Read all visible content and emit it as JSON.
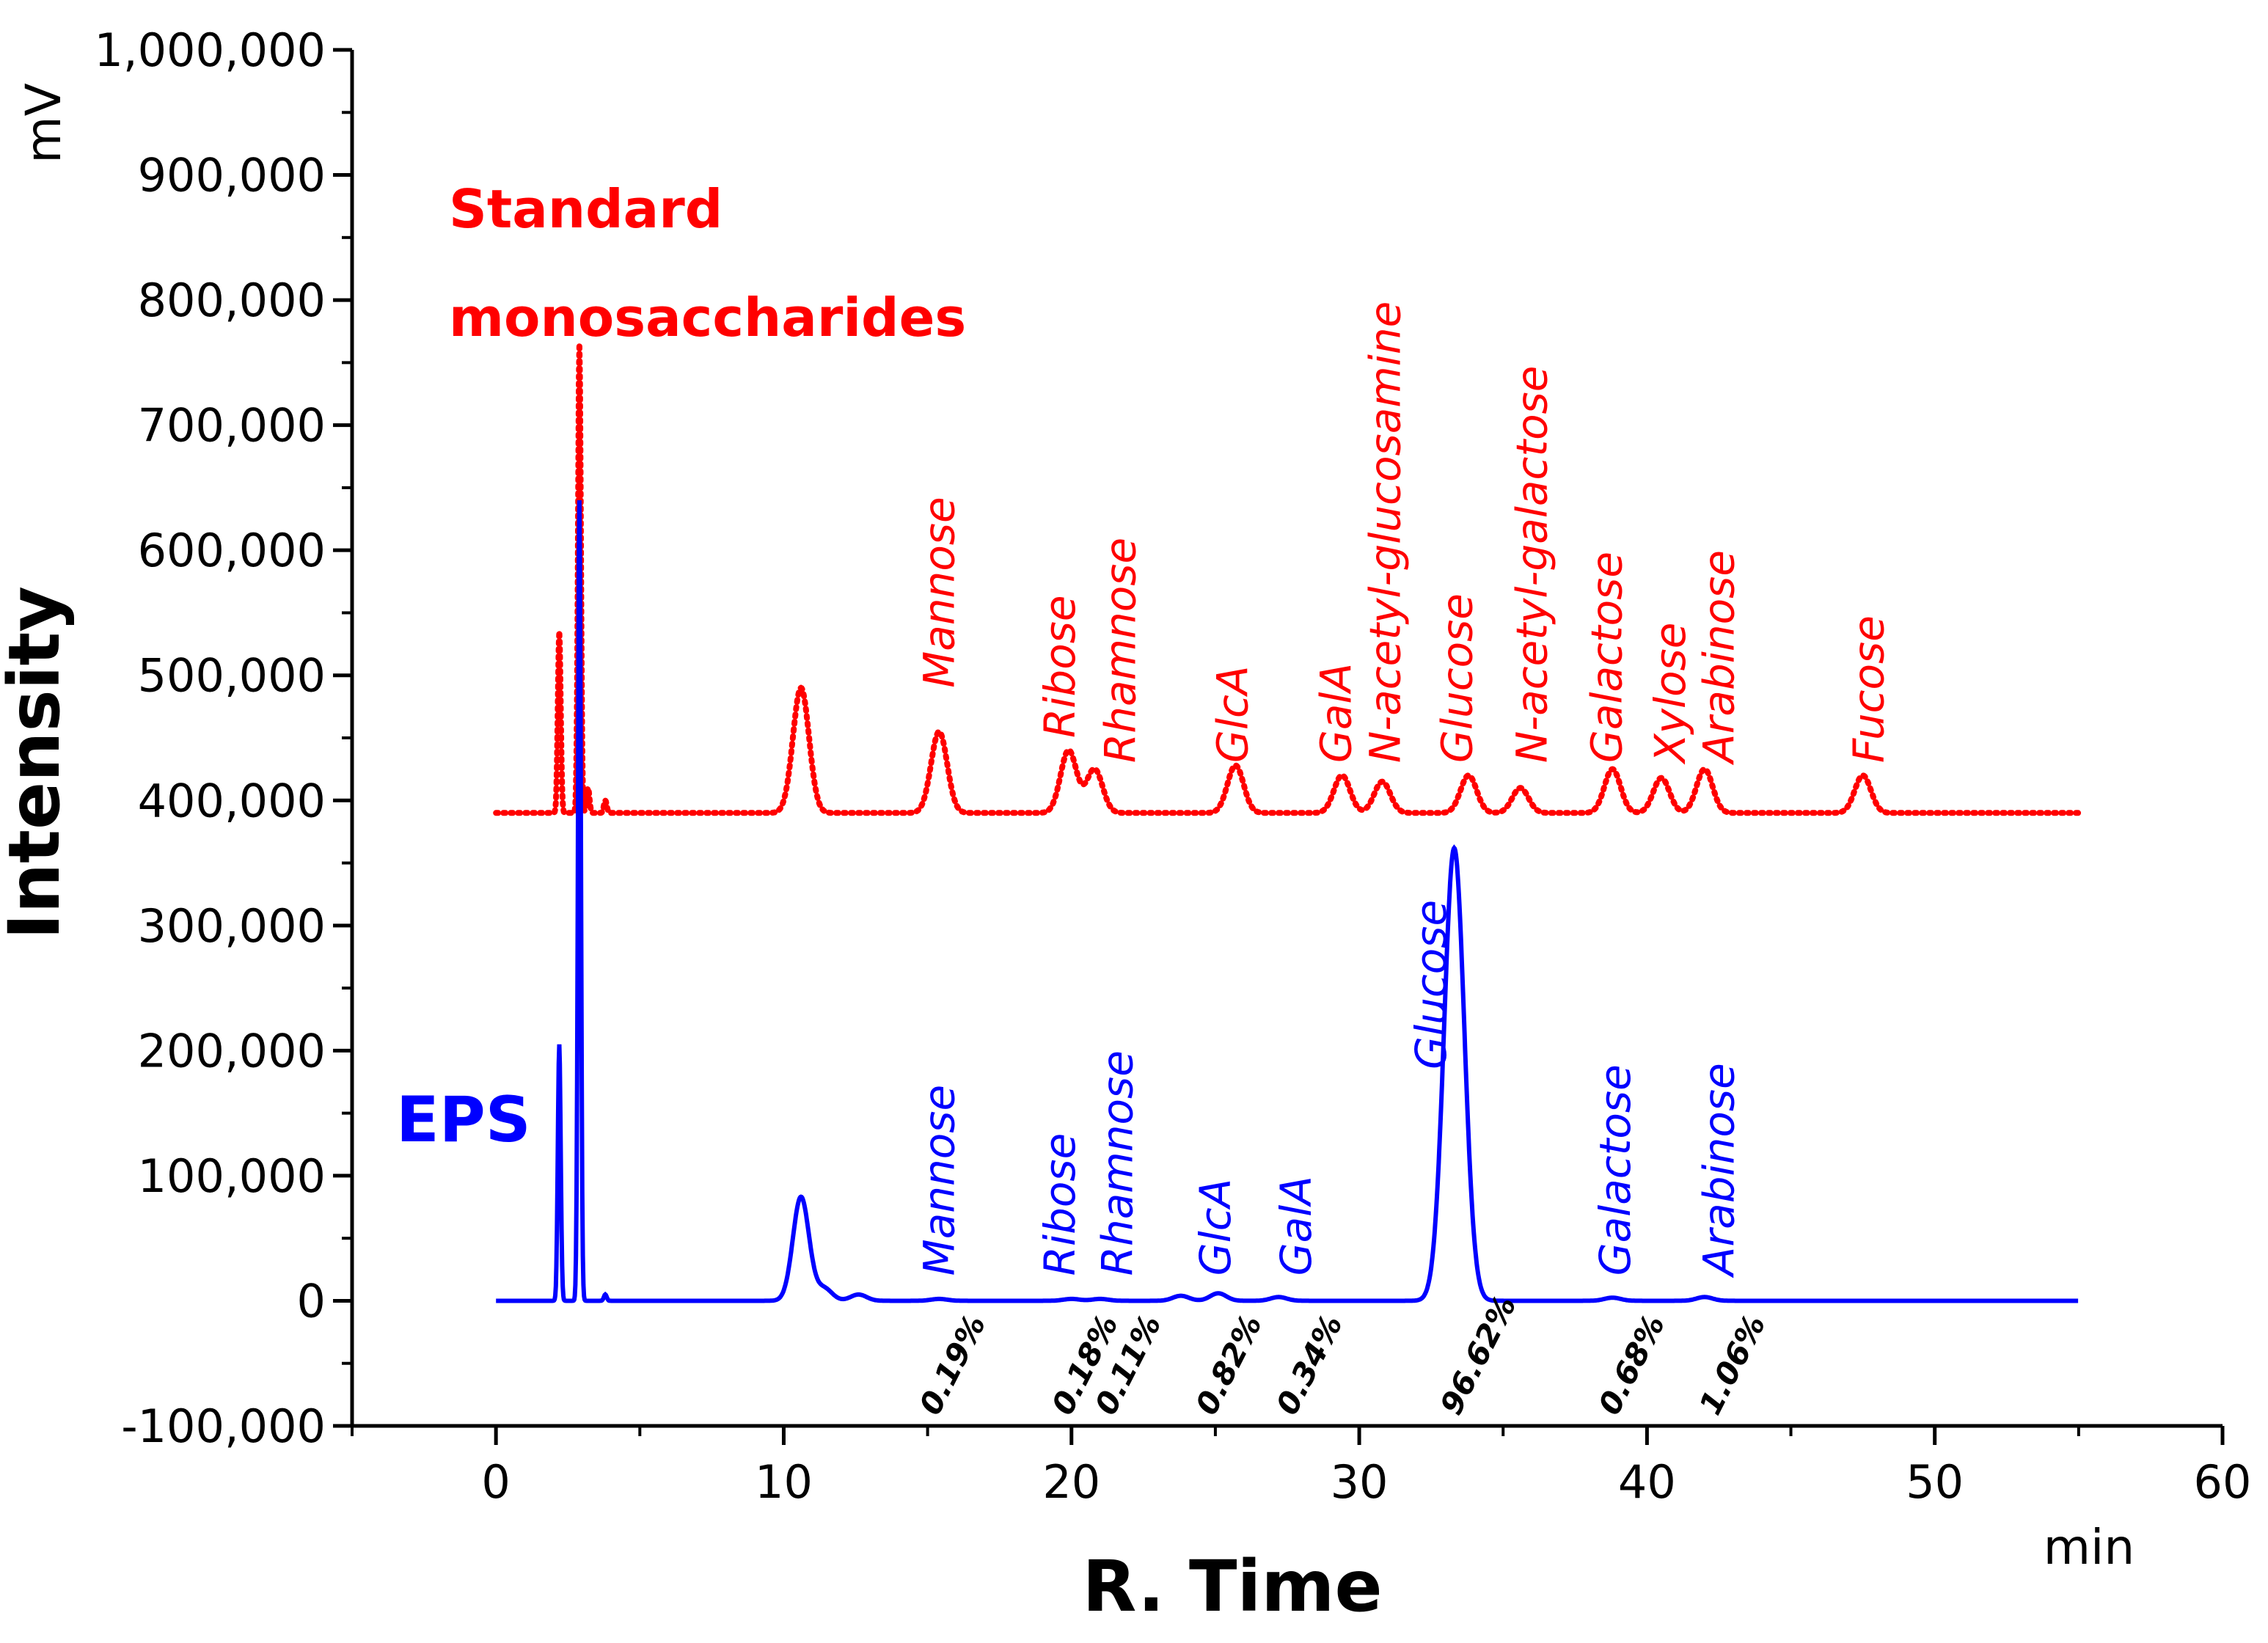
{
  "chart_data": {
    "type": "line",
    "ylabel": "Intensity",
    "yunit": "mV",
    "xlabel": "R. Time",
    "xunit": "min",
    "xlim": [
      -5,
      60
    ],
    "ylim": [
      -100000,
      1000000
    ],
    "xticks": [
      0,
      10,
      20,
      30,
      40,
      50,
      60
    ],
    "xtick_labels": [
      "0",
      "10",
      "20",
      "30",
      "40",
      "50",
      "60"
    ],
    "yticks": [
      -100000,
      0,
      100000,
      200000,
      300000,
      400000,
      500000,
      600000,
      700000,
      800000,
      900000,
      1000000
    ],
    "ytick_labels": [
      "-100,000",
      "0",
      "100,000",
      "200,000",
      "300,000",
      "400,000",
      "500,000",
      "600,000",
      "700,000",
      "800,000",
      "900,000",
      "1,000,000"
    ],
    "series": [
      {
        "name": "Standard monosaccharides",
        "name_lines": [
          "Standard",
          "monosaccharides"
        ],
        "color": "#ff0000",
        "style": "dotted",
        "x_range": [
          0,
          55
        ],
        "baseline": 390000,
        "peaks": [
          {
            "x": 2.2,
            "y": 535000
          },
          {
            "x": 2.9,
            "y": 765000
          },
          {
            "x": 3.2,
            "y": 410000
          },
          {
            "x": 3.8,
            "y": 400000
          },
          {
            "x": 10.6,
            "y": 490000
          },
          {
            "x": 15.4,
            "y": 455000
          },
          {
            "x": 19.9,
            "y": 440000
          },
          {
            "x": 20.8,
            "y": 425000
          },
          {
            "x": 25.7,
            "y": 428000
          },
          {
            "x": 29.4,
            "y": 420000
          },
          {
            "x": 30.8,
            "y": 415000
          },
          {
            "x": 33.8,
            "y": 420000
          },
          {
            "x": 35.6,
            "y": 410000
          },
          {
            "x": 38.8,
            "y": 425000
          },
          {
            "x": 40.5,
            "y": 418000
          },
          {
            "x": 42.0,
            "y": 425000
          },
          {
            "x": 47.5,
            "y": 420000
          }
        ],
        "peak_labels": [
          {
            "text": "Mannose",
            "x": 15.4,
            "y": 490000
          },
          {
            "text": "Ribose",
            "x": 19.6,
            "y": 450000
          },
          {
            "text": "Rhamnose",
            "x": 21.7,
            "y": 430000
          },
          {
            "text": "GlcA",
            "x": 25.6,
            "y": 430000
          },
          {
            "text": "GalA",
            "x": 29.2,
            "y": 430000
          },
          {
            "text": "N-acetyl-glucosamine",
            "x": 30.9,
            "y": 430000
          },
          {
            "text": "Glucose",
            "x": 33.4,
            "y": 430000
          },
          {
            "text": "N-acetyl-galactose",
            "x": 36.0,
            "y": 430000
          },
          {
            "text": "Galactose",
            "x": 38.6,
            "y": 430000
          },
          {
            "text": "Xylose",
            "x": 40.8,
            "y": 430000
          },
          {
            "text": "Arabinose",
            "x": 42.5,
            "y": 430000
          },
          {
            "text": "Fucose",
            "x": 47.7,
            "y": 430000
          }
        ]
      },
      {
        "name": "EPS",
        "color": "#0000ff",
        "style": "solid",
        "x_range": [
          0,
          55
        ],
        "baseline": 0,
        "peaks": [
          {
            "x": 2.2,
            "y": 205000
          },
          {
            "x": 2.9,
            "y": 640000
          },
          {
            "x": 3.8,
            "y": 5000
          },
          {
            "x": 10.6,
            "y": 83000
          },
          {
            "x": 11.4,
            "y": 10000
          },
          {
            "x": 12.6,
            "y": 5000
          },
          {
            "x": 15.4,
            "y": 1500
          },
          {
            "x": 20.0,
            "y": 1500
          },
          {
            "x": 21.0,
            "y": 1500
          },
          {
            "x": 23.8,
            "y": 4000
          },
          {
            "x": 25.1,
            "y": 6000
          },
          {
            "x": 27.2,
            "y": 3000
          },
          {
            "x": 33.3,
            "y": 362000
          },
          {
            "x": 38.8,
            "y": 2500
          },
          {
            "x": 42.0,
            "y": 3000
          }
        ],
        "peak_labels": [
          {
            "text": "Mannose",
            "x": 15.4,
            "y": 20000
          },
          {
            "text": "Ribose",
            "x": 19.6,
            "y": 20000
          },
          {
            "text": "Rhamnose",
            "x": 21.6,
            "y": 20000
          },
          {
            "text": "GlcA",
            "x": 25.0,
            "y": 20000
          },
          {
            "text": "GalA",
            "x": 27.8,
            "y": 20000
          },
          {
            "text": "Glucose",
            "x": 32.5,
            "y": 185000
          },
          {
            "text": "Galactose",
            "x": 38.9,
            "y": 20000
          },
          {
            "text": "Arabinose",
            "x": 42.5,
            "y": 20000
          }
        ],
        "percentages": [
          {
            "text": "0.19%",
            "x": 15.4
          },
          {
            "text": "0.18%",
            "x": 20.0
          },
          {
            "text": "0.11%",
            "x": 21.5
          },
          {
            "text": "0.82%",
            "x": 25.0
          },
          {
            "text": "0.34%",
            "x": 27.8
          },
          {
            "text": "96.62%",
            "x": 33.5
          },
          {
            "text": "0.68%",
            "x": 39.0
          },
          {
            "text": "1.06%",
            "x": 42.5
          }
        ]
      }
    ]
  }
}
